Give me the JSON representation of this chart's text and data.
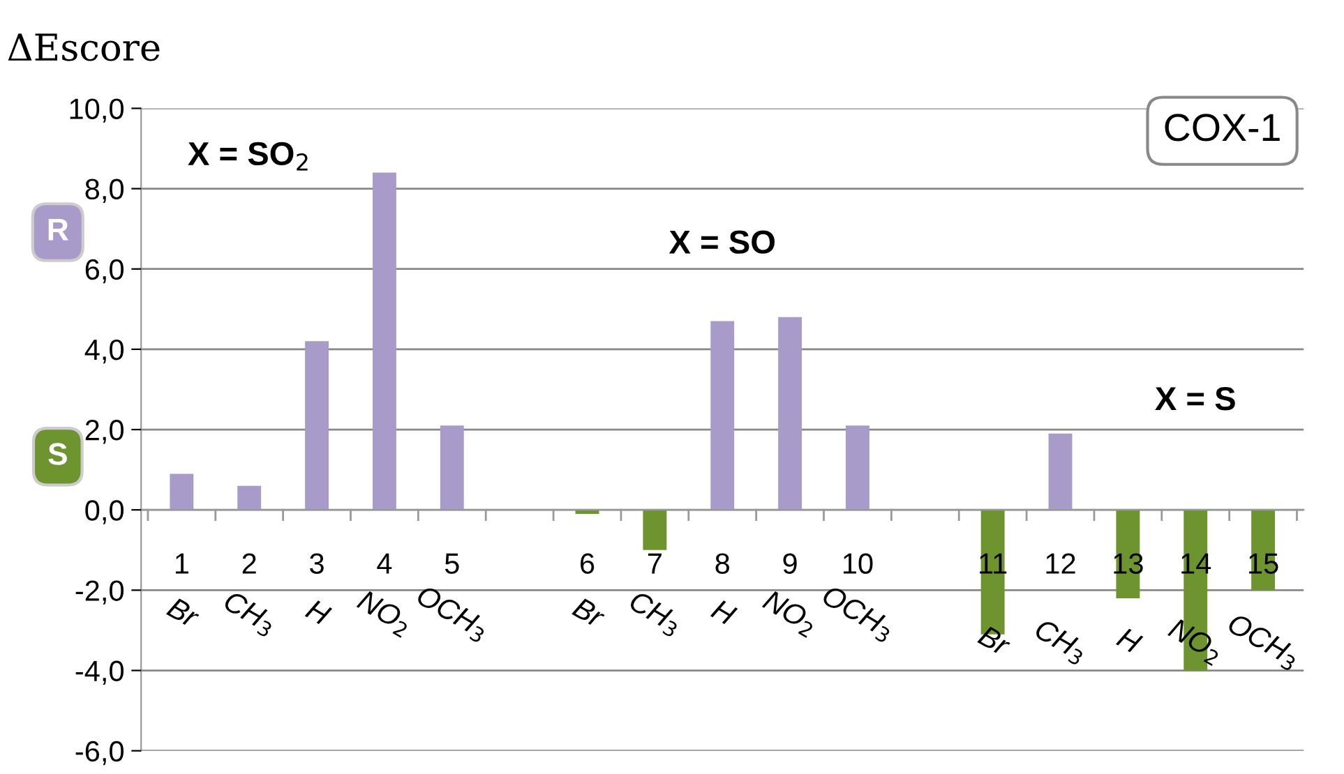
{
  "chart_data": {
    "type": "bar",
    "title": "COX-1",
    "ylabel": "ΔEscore",
    "categories": [
      "1",
      "2",
      "3",
      "4",
      "5",
      null,
      "6",
      "7",
      "8",
      "9",
      "10",
      null,
      "11",
      "12",
      "13",
      "14",
      "15"
    ],
    "series": [
      {
        "name": "R",
        "color": "#a99bc9",
        "values": [
          0.9,
          0.6,
          4.2,
          8.4,
          2.1,
          null,
          null,
          null,
          4.7,
          4.8,
          2.1,
          null,
          null,
          1.9,
          null,
          null,
          null
        ]
      },
      {
        "name": "S",
        "color": "#6e9430",
        "values": [
          null,
          null,
          null,
          null,
          null,
          null,
          -0.1,
          -1.0,
          null,
          null,
          null,
          null,
          -3.1,
          null,
          -2.2,
          -4.0,
          -2.0
        ]
      }
    ],
    "ylim": [
      -6,
      10
    ],
    "yticks": [
      {
        "value": -6,
        "label": "-6,0"
      },
      {
        "value": -4,
        "label": "-4,0"
      },
      {
        "value": -2,
        "label": "-2,0"
      },
      {
        "value": 0,
        "label": "0,0"
      },
      {
        "value": 2,
        "label": "2,0"
      },
      {
        "value": 4,
        "label": "4,0"
      },
      {
        "value": 6,
        "label": "6,0"
      },
      {
        "value": 8,
        "label": "8,0"
      },
      {
        "value": 10,
        "label": "10,0"
      }
    ],
    "grid": "y",
    "legend": "left",
    "annotations": [
      "X = SO$_{2}$",
      "X = SO",
      "X = S",
      "Br",
      "CH$_{3}$",
      "H",
      "NO$_{2}$",
      "OCH$_{3}$",
      "Br",
      "CH$_{3}$",
      "H",
      "NO$_{2}$",
      "OCH$_{3}$",
      "Br",
      "CH$_{3}$",
      "H",
      "NO$_{2}$",
      "OCH$_{3}$"
    ]
  }
}
